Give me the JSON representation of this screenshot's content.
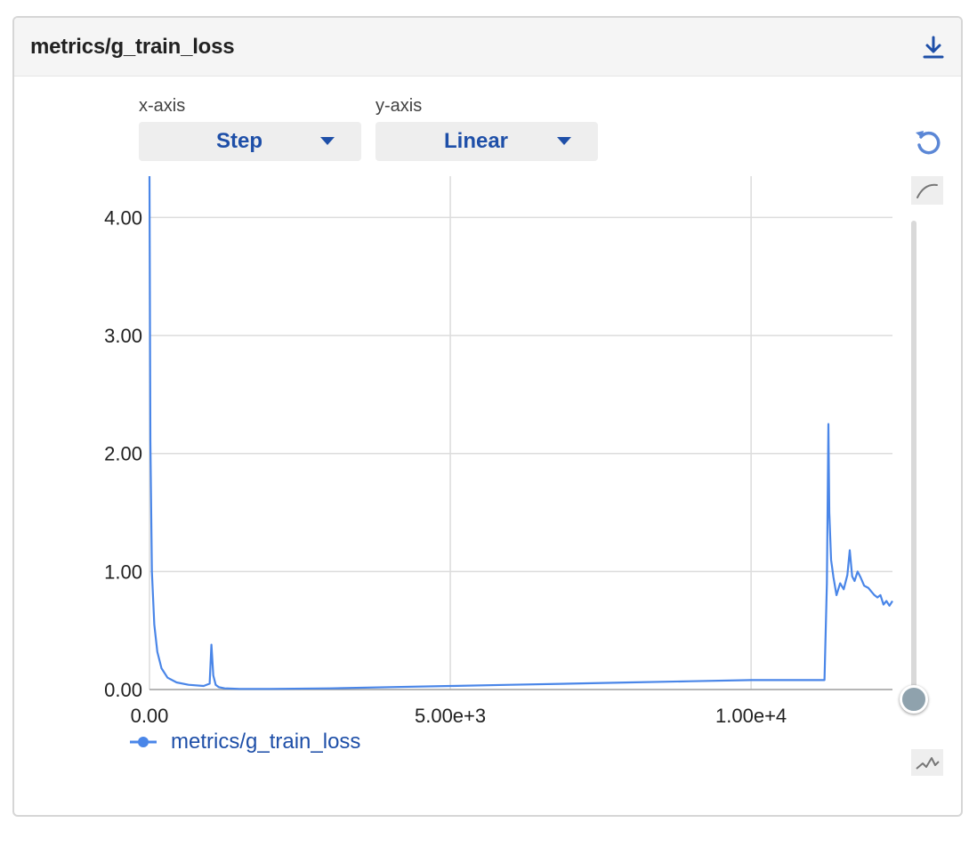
{
  "card": {
    "title": "metrics/g_train_loss",
    "download_icon": "download-icon"
  },
  "controls": {
    "xaxis_label": "x-axis",
    "xaxis_value": "Step",
    "yaxis_label": "y-axis",
    "yaxis_value": "Linear",
    "reset_icon": "reset-icon",
    "smoothing_icon": "smoothing-curve-icon",
    "raw_icon": "raw-line-icon"
  },
  "colors": {
    "series": "#4a86e8",
    "accent": "#1e4fa8",
    "grid": "#dcdcdc"
  },
  "chart_data": {
    "type": "line",
    "title": "",
    "xlabel": "",
    "ylabel": "",
    "xlim": [
      0,
      12350
    ],
    "ylim": [
      0,
      4.35
    ],
    "x_ticks": [
      0,
      5000,
      10000
    ],
    "x_tick_labels": [
      "0.00",
      "5.00e+3",
      "1.00e+4"
    ],
    "y_ticks": [
      0,
      1,
      2,
      3,
      4
    ],
    "y_tick_labels": [
      "0.00",
      "1.00",
      "2.00",
      "3.00",
      "4.00"
    ],
    "grid": true,
    "legend": "bottom-left",
    "series": [
      {
        "name": "metrics/g_train_loss",
        "x": [
          0,
          15,
          40,
          80,
          130,
          200,
          300,
          450,
          650,
          900,
          1000,
          1030,
          1060,
          1100,
          1150,
          1250,
          1500,
          2000,
          3000,
          4000,
          5000,
          6000,
          7000,
          8000,
          9000,
          10000,
          10700,
          11220,
          11260,
          11285,
          11300,
          11330,
          11370,
          11420,
          11480,
          11540,
          11600,
          11640,
          11680,
          11720,
          11770,
          11820,
          11880,
          11950,
          12000,
          12050,
          12100,
          12150,
          12200,
          12250,
          12300,
          12350
        ],
        "y": [
          4.35,
          2.1,
          1.0,
          0.55,
          0.32,
          0.18,
          0.1,
          0.06,
          0.04,
          0.03,
          0.05,
          0.38,
          0.12,
          0.04,
          0.02,
          0.01,
          0.005,
          0.005,
          0.01,
          0.02,
          0.03,
          0.04,
          0.05,
          0.06,
          0.07,
          0.08,
          0.08,
          0.08,
          0.9,
          2.25,
          1.5,
          1.1,
          0.95,
          0.8,
          0.9,
          0.85,
          0.97,
          1.18,
          0.96,
          0.92,
          1.0,
          0.95,
          0.88,
          0.86,
          0.83,
          0.8,
          0.78,
          0.8,
          0.72,
          0.75,
          0.71,
          0.75
        ]
      }
    ]
  }
}
